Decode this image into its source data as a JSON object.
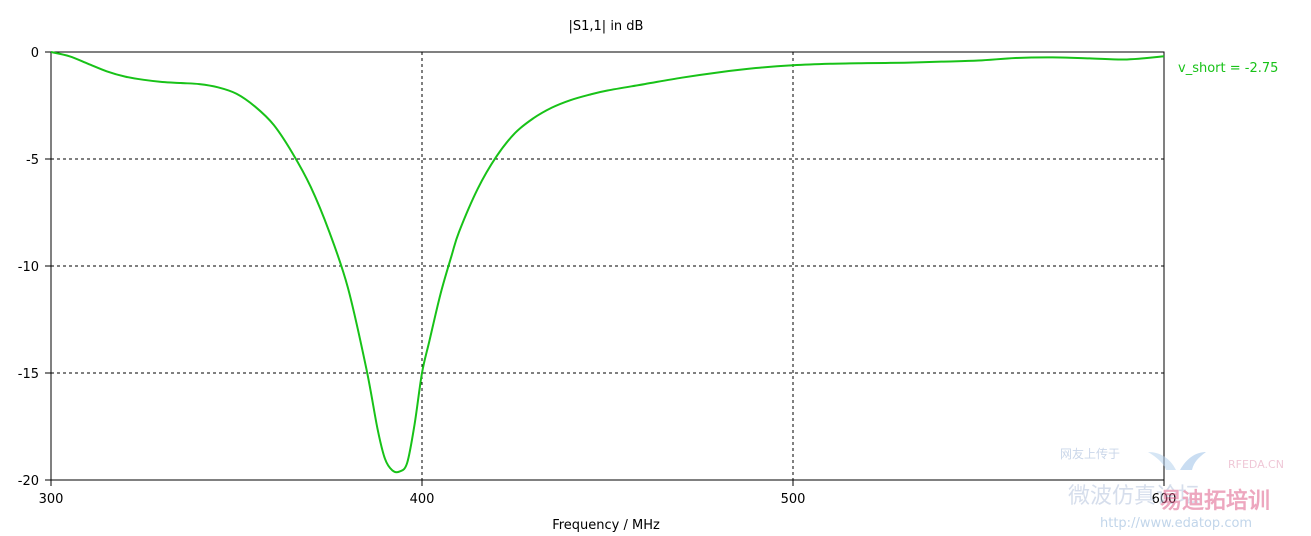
{
  "chart_data": {
    "type": "line",
    "title": "|S1,1| in dB",
    "xlabel": "Frequency / MHz",
    "ylabel": "",
    "xlim": [
      300,
      600
    ],
    "ylim": [
      -20,
      0
    ],
    "x_ticks": [
      300,
      400,
      500,
      600
    ],
    "y_ticks": [
      0,
      -5,
      -10,
      -15,
      -20
    ],
    "grid": true,
    "legend_position": "right",
    "series": [
      {
        "name": "v_short = -2.75",
        "color": "#18c218",
        "x": [
          300,
          305,
          310,
          315,
          320,
          325,
          330,
          335,
          340,
          345,
          350,
          355,
          360,
          365,
          370,
          375,
          380,
          385,
          388,
          390,
          392,
          394,
          396,
          398,
          400,
          402,
          405,
          408,
          410,
          415,
          420,
          425,
          430,
          435,
          440,
          445,
          450,
          460,
          470,
          480,
          490,
          500,
          510,
          520,
          530,
          540,
          550,
          560,
          570,
          580,
          590,
          600
        ],
        "values": [
          0.0,
          -0.2,
          -0.55,
          -0.9,
          -1.15,
          -1.3,
          -1.4,
          -1.45,
          -1.5,
          -1.65,
          -1.95,
          -2.55,
          -3.4,
          -4.7,
          -6.3,
          -8.4,
          -11.0,
          -14.8,
          -17.6,
          -19.0,
          -19.55,
          -19.6,
          -19.2,
          -17.4,
          -15.0,
          -13.5,
          -11.3,
          -9.5,
          -8.4,
          -6.4,
          -4.9,
          -3.8,
          -3.1,
          -2.6,
          -2.25,
          -2.0,
          -1.8,
          -1.5,
          -1.2,
          -0.95,
          -0.75,
          -0.62,
          -0.55,
          -0.52,
          -0.5,
          -0.45,
          -0.4,
          -0.28,
          -0.25,
          -0.3,
          -0.35,
          -0.2
        ]
      }
    ]
  },
  "watermark": {
    "cn_small": "网友上传于",
    "brand_small": "RFEDA.CN",
    "cn_large": "微波仿真论坛",
    "cn_large_2": "易迪拓培训",
    "url": "http://www.edatop.com"
  }
}
